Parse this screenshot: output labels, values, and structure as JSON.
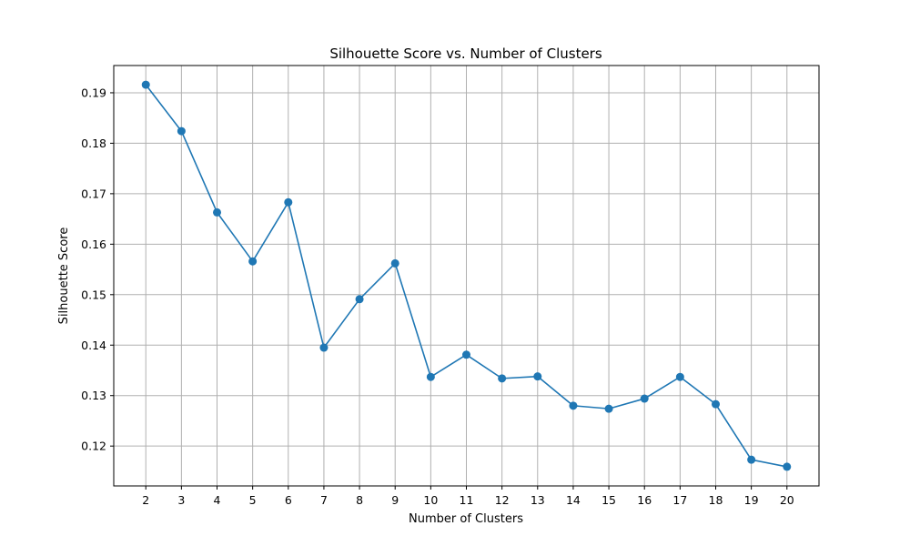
{
  "chart_data": {
    "type": "line",
    "title": "Silhouette Score vs. Number of Clusters",
    "xlabel": "Number of Clusters",
    "ylabel": "Silhouette Score",
    "x": [
      2,
      3,
      4,
      5,
      6,
      7,
      8,
      9,
      10,
      11,
      12,
      13,
      14,
      15,
      16,
      17,
      18,
      19,
      20
    ],
    "series": [
      {
        "values": [
          0.1916,
          0.1824,
          0.1663,
          0.1566,
          0.1683,
          0.1395,
          0.1491,
          0.1562,
          0.1337,
          0.1381,
          0.1334,
          0.1338,
          0.128,
          0.1274,
          0.1294,
          0.1337,
          0.1283,
          0.1173,
          0.1159
        ],
        "color": "#1f77b4",
        "marker": "circle"
      }
    ],
    "xticks": [
      "2",
      "3",
      "4",
      "5",
      "6",
      "7",
      "8",
      "9",
      "10",
      "11",
      "12",
      "13",
      "14",
      "15",
      "16",
      "17",
      "18",
      "19",
      "20"
    ],
    "yticks": [
      "0.12",
      "0.13",
      "0.14",
      "0.15",
      "0.16",
      "0.17",
      "0.18",
      "0.19"
    ],
    "xlim": [
      1.1,
      20.9
    ],
    "ylim": [
      0.1121,
      0.1954
    ],
    "grid": true,
    "legend": false
  }
}
